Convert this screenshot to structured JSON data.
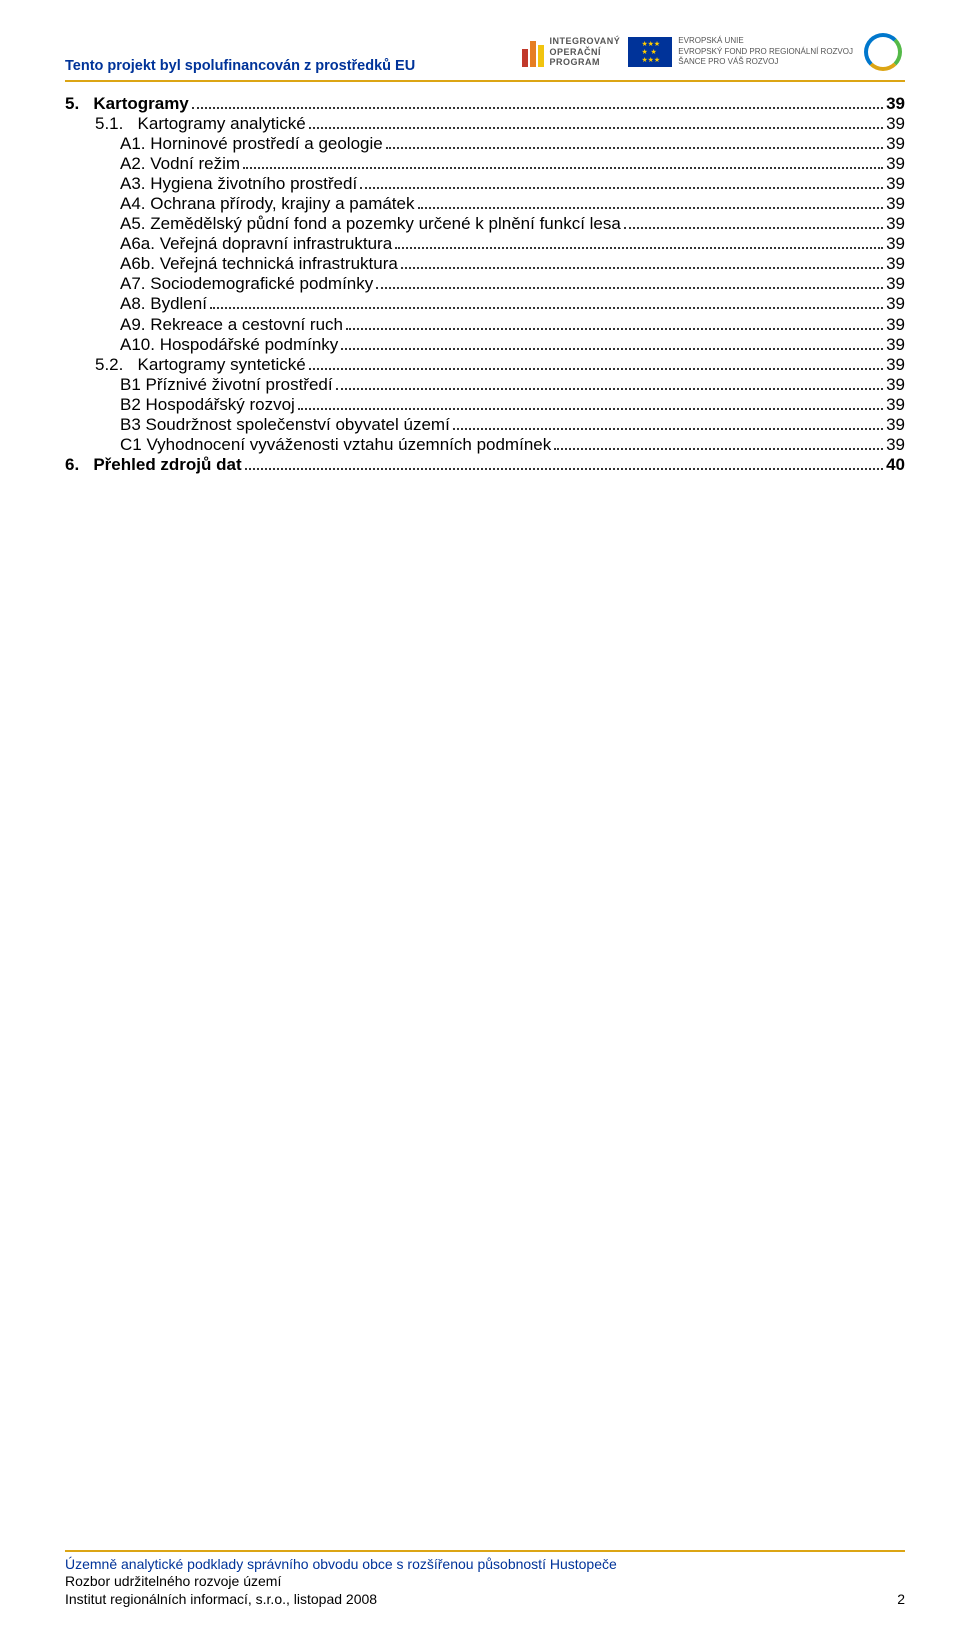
{
  "header": {
    "subtitle": "Tento projekt byl spolufinancován z prostředků EU",
    "iop_label_1": "INTEGROVANÝ",
    "iop_label_2": "OPERAČNÍ",
    "iop_label_3": "PROGRAM",
    "iop_bars": [
      {
        "color": "#c1392b",
        "h": 18
      },
      {
        "color": "#e67e22",
        "h": 26
      },
      {
        "color": "#f1c40f",
        "h": 22
      }
    ],
    "eu_line1": "EVROPSKÁ UNIE",
    "eu_line2": "EVROPSKÝ FOND PRO REGIONÁLNÍ ROZVOJ",
    "eu_line3": "ŠANCE PRO VÁŠ ROZVOJ",
    "underline_color": "#dca514"
  },
  "toc": [
    {
      "depth": 0,
      "num": "5.",
      "title": "Kartogramy",
      "page": "39",
      "bold": true
    },
    {
      "depth": 1,
      "num": "5.1.",
      "title": "Kartogramy analytické",
      "page": "39"
    },
    {
      "depth": 2,
      "num": "",
      "title": "A1. Horninové prostředí a geologie",
      "page": "39"
    },
    {
      "depth": 2,
      "num": "",
      "title": "A2. Vodní režim",
      "page": "39"
    },
    {
      "depth": 2,
      "num": "",
      "title": "A3. Hygiena životního prostředí",
      "page": "39"
    },
    {
      "depth": 2,
      "num": "",
      "title": "A4. Ochrana přírody, krajiny a památek",
      "page": "39"
    },
    {
      "depth": 2,
      "num": "",
      "title": "A5. Zemědělský půdní fond a pozemky určené k plnění funkcí lesa",
      "page": "39"
    },
    {
      "depth": 2,
      "num": "",
      "title": "A6a. Veřejná dopravní infrastruktura",
      "page": "39"
    },
    {
      "depth": 2,
      "num": "",
      "title": "A6b. Veřejná technická infrastruktura",
      "page": "39"
    },
    {
      "depth": 2,
      "num": "",
      "title": "A7. Sociodemografické podmínky",
      "page": "39"
    },
    {
      "depth": 2,
      "num": "",
      "title": "A8. Bydlení",
      "page": "39"
    },
    {
      "depth": 2,
      "num": "",
      "title": "A9. Rekreace a cestovní ruch",
      "page": "39"
    },
    {
      "depth": 2,
      "num": "",
      "title": "A10. Hospodářské podmínky",
      "page": "39"
    },
    {
      "depth": 1,
      "num": "5.2.",
      "title": "Kartogramy syntetické",
      "page": "39"
    },
    {
      "depth": 2,
      "num": "",
      "title": "B1 Příznivé životní prostředí",
      "page": "39"
    },
    {
      "depth": 2,
      "num": "",
      "title": "B2 Hospodářský rozvoj",
      "page": "39"
    },
    {
      "depth": 2,
      "num": "",
      "title": "B3 Soudržnost společenství obyvatel území",
      "page": "39"
    },
    {
      "depth": 2,
      "num": "",
      "title": "C1 Vyhodnocení vyváženosti vztahu územních podmínek",
      "page": "39"
    },
    {
      "depth": 0,
      "num": "6.",
      "title": "Přehled zdrojů dat",
      "page": "40",
      "bold": true
    }
  ],
  "footer": {
    "line1": "Územně analytické podklady správního obvodu obce s rozšířenou působností Hustopeče",
    "line2": "Rozbor udržitelného rozvoje území",
    "line3": "Institut regionálních informací, s.r.o., listopad 2008",
    "line1_color": "#003399",
    "page_no": "2"
  }
}
